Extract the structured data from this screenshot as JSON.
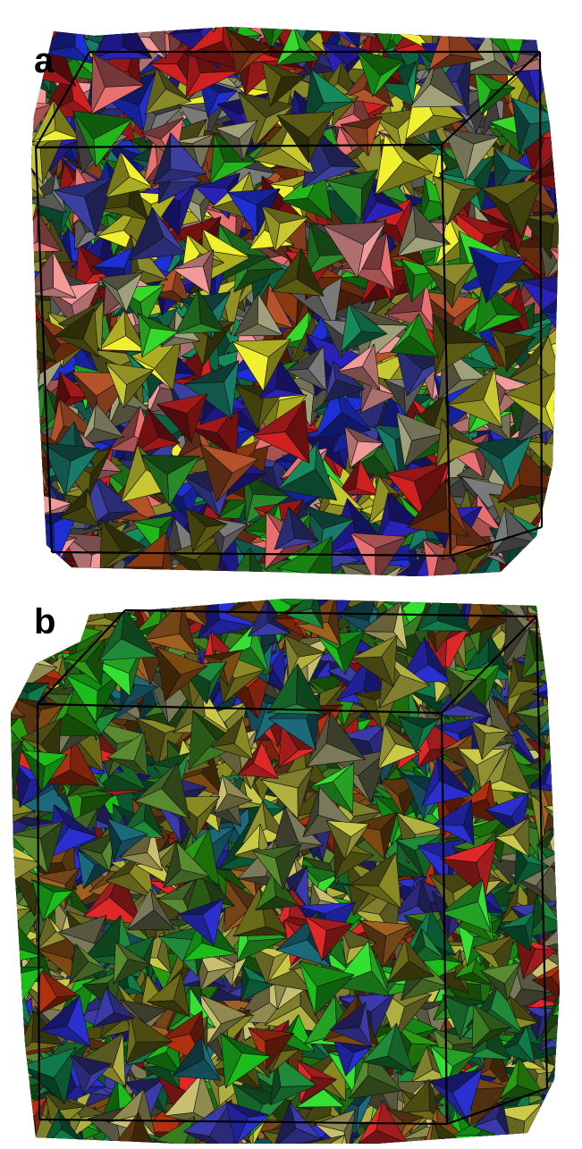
{
  "panels": [
    {
      "label": "a",
      "palette": [
        "#1f2fd6",
        "#2a22b8",
        "#3b3fa0",
        "#1a7a6a",
        "#168a5a",
        "#22b61a",
        "#36d92a",
        "#5a5a12",
        "#8a8a2a",
        "#c8c832",
        "#f0f030",
        "#d02020",
        "#a01818",
        "#e87070",
        "#f29a9a",
        "#8a3a10",
        "#b4532a",
        "#7a7a7a",
        "#a0a07a",
        "#2a8a2a"
      ],
      "bounding_box_color": "#000000"
    },
    {
      "label": "b",
      "palette": [
        "#2a9a10",
        "#1bbd1b",
        "#34e032",
        "#0f7a4a",
        "#1a6a7a",
        "#2a2fd0",
        "#3a3aa8",
        "#6a6a18",
        "#8a8a24",
        "#b0b040",
        "#caca48",
        "#c8c070",
        "#e02828",
        "#b03010",
        "#7a4a10",
        "#a06020",
        "#5a8a30",
        "#3a7a20",
        "#7a7a5a",
        "#1e8a3a"
      ],
      "bounding_box_color": "#000000"
    }
  ]
}
